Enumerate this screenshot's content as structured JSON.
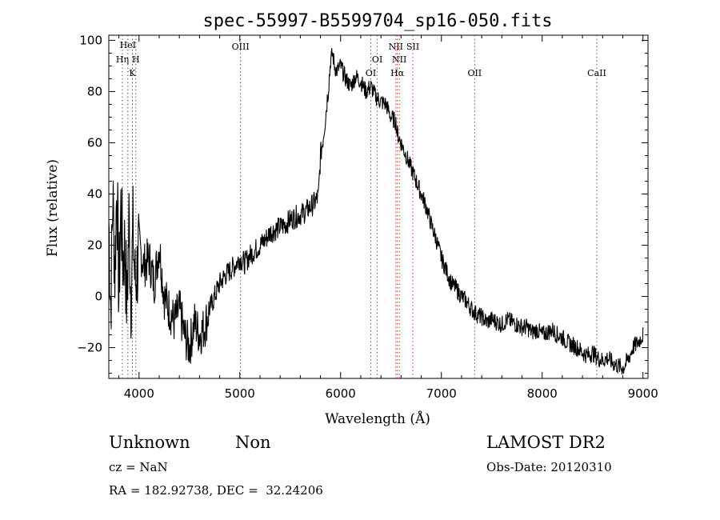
{
  "chart_data": {
    "type": "line",
    "title": "spec-55997-B5599704_sp16-050.fits",
    "xlabel": "Wavelength (Å)",
    "ylabel": "Flux (relative)",
    "xlim": [
      3700,
      9050
    ],
    "ylim": [
      -32,
      102
    ],
    "xticks": [
      4000,
      5000,
      6000,
      7000,
      8000,
      9000
    ],
    "yticks": [
      -20,
      0,
      20,
      40,
      60,
      80,
      100
    ],
    "grid": false,
    "legend": "none",
    "series": [
      {
        "x": [
          3700,
          3720,
          3740,
          3760,
          3780,
          3800,
          3820,
          3840,
          3860,
          3880,
          3900,
          3920,
          3940,
          3960,
          3980,
          4000,
          4050,
          4100,
          4150,
          4200,
          4250,
          4300,
          4350,
          4400,
          4450,
          4500,
          4550,
          4600,
          4650,
          4700,
          4750,
          4800,
          4850,
          4900,
          4950,
          5000,
          5050,
          5100,
          5150,
          5200,
          5250,
          5300,
          5350,
          5400,
          5450,
          5500,
          5550,
          5600,
          5650,
          5700,
          5750,
          5780,
          5800,
          5820,
          5850,
          5880,
          5900,
          5920,
          5940,
          5960,
          6000,
          6050,
          6100,
          6150,
          6200,
          6250,
          6300,
          6350,
          6400,
          6450,
          6500,
          6550,
          6560,
          6600,
          6650,
          6700,
          6750,
          6800,
          6850,
          6900,
          6950,
          7000,
          7050,
          7100,
          7150,
          7200,
          7250,
          7300,
          7350,
          7400,
          7450,
          7500,
          7550,
          7600,
          7650,
          7700,
          7750,
          7800,
          7850,
          7900,
          7950,
          8000,
          8050,
          8100,
          8150,
          8200,
          8250,
          8300,
          8350,
          8400,
          8450,
          8500,
          8550,
          8600,
          8650,
          8700,
          8750,
          8800,
          8850,
          8900,
          8950,
          9000
        ],
        "values": [
          30,
          -5,
          40,
          10,
          45,
          0,
          35,
          15,
          20,
          -5,
          30,
          0,
          25,
          5,
          10,
          20,
          12,
          15,
          5,
          20,
          0,
          -5,
          -10,
          -5,
          -15,
          -20,
          -10,
          -15,
          -12,
          -5,
          0,
          5,
          8,
          10,
          12,
          15,
          13,
          16,
          18,
          20,
          22,
          25,
          26,
          27,
          28,
          30,
          31,
          32,
          33,
          35,
          37,
          39,
          55,
          60,
          70,
          82,
          92,
          95,
          90,
          88,
          90,
          85,
          82,
          86,
          84,
          80,
          82,
          78,
          76,
          75,
          70,
          68,
          64,
          60,
          55,
          50,
          45,
          40,
          35,
          28,
          22,
          15,
          10,
          5,
          3,
          0,
          -2,
          -5,
          -7,
          -8,
          -10,
          -9,
          -10,
          -11,
          -9,
          -10,
          -11,
          -12,
          -12,
          -14,
          -13,
          -15,
          -14,
          -13,
          -15,
          -16,
          -18,
          -19,
          -20,
          -22,
          -23,
          -22,
          -24,
          -25,
          -24,
          -26,
          -27,
          -28,
          -25,
          -20,
          -18,
          -15
        ]
      }
    ],
    "lines": [
      {
        "name": "HeI",
        "x": 3889
      },
      {
        "name": "Hη",
        "x": 3835
      },
      {
        "name": "H",
        "x": 3968
      },
      {
        "name": "K",
        "x": 3934
      },
      {
        "name": "OIII",
        "x": 5007
      },
      {
        "name": "OI",
        "x": 6300
      },
      {
        "name": "OI",
        "x": 6364
      },
      {
        "name": "NII",
        "x": 6548
      },
      {
        "name": "NII",
        "x": 6583
      },
      {
        "name": "Hα",
        "x": 6563
      },
      {
        "name": "SII",
        "x": 6717
      },
      {
        "name": "OII",
        "x": 7330
      },
      {
        "name": "CaII",
        "x": 8542
      }
    ]
  },
  "info": {
    "class": "Unknown",
    "subclass": "Non",
    "survey": "LAMOST DR2",
    "cz": "cz = NaN",
    "obs_date": "Obs-Date: 20120310",
    "radec": "RA = 182.92738, DEC =  32.24206"
  }
}
